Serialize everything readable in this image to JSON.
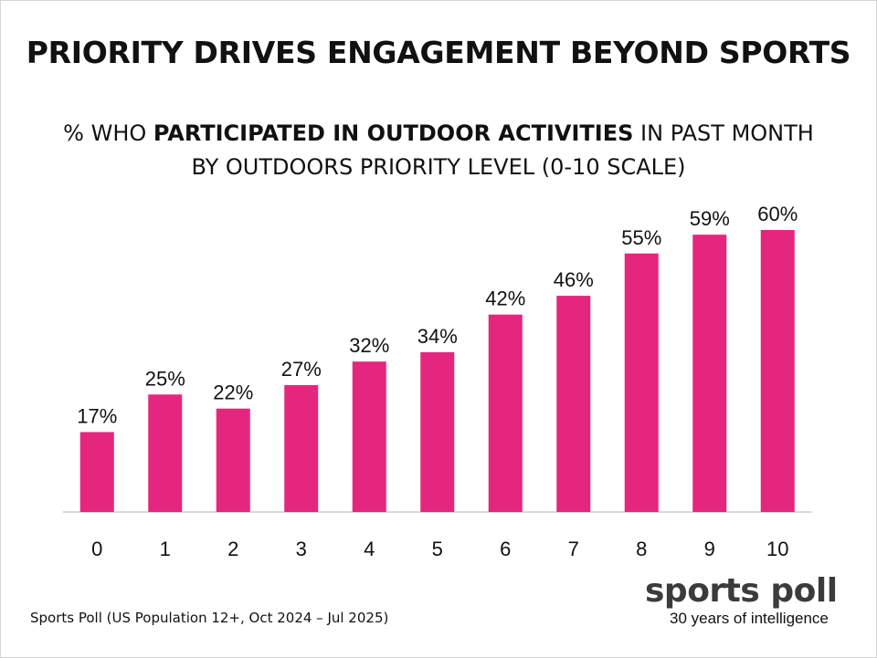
{
  "title": "PRIORITY DRIVES ENGAGEMENT BEYOND SPORTS",
  "subtitle": {
    "prefix": "% WHO ",
    "emphasis": "PARTICIPATED IN OUTDOOR ACTIVITIES",
    "suffix": " IN PAST MONTH",
    "line2": "BY OUTDOORS PRIORITY LEVEL (0-10 SCALE)"
  },
  "chart_data": {
    "type": "bar",
    "categories": [
      "0",
      "1",
      "2",
      "3",
      "4",
      "5",
      "6",
      "7",
      "8",
      "9",
      "10"
    ],
    "values": [
      17,
      25,
      22,
      27,
      32,
      34,
      42,
      46,
      55,
      59,
      60
    ],
    "value_labels": [
      "17%",
      "25%",
      "22%",
      "27%",
      "32%",
      "34%",
      "42%",
      "46%",
      "55%",
      "59%",
      "60%"
    ],
    "title": "PRIORITY DRIVES ENGAGEMENT BEYOND SPORTS",
    "subtitle": "% WHO PARTICIPATED IN OUTDOOR ACTIVITIES IN PAST MONTH BY OUTDOORS PRIORITY LEVEL (0-10 SCALE)",
    "xlabel": "",
    "ylabel": "",
    "ylim": [
      0,
      60
    ],
    "grid": false,
    "bar_color": "#e5267f"
  },
  "footer": {
    "source": "Sports Poll (US Population 12+, Oct 2024 – Jul 2025)",
    "brand_name": "sports poll",
    "brand_tagline": "30 years of intelligence"
  },
  "colors": {
    "bar": "#e5267f",
    "axis": "#d9d9d9",
    "text": "#111111"
  }
}
